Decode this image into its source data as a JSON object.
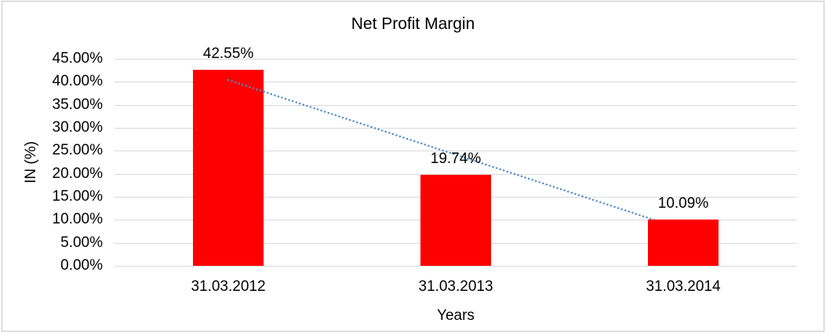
{
  "chart_data": {
    "type": "bar",
    "title": "Net Profit Margin",
    "xlabel": "Years",
    "ylabel": "IN (%)",
    "categories": [
      "31.03.2012",
      "31.03.2013",
      "31.03.2014"
    ],
    "values": [
      42.55,
      19.74,
      10.09
    ],
    "data_labels": [
      "42.55%",
      "19.74%",
      "10.09%"
    ],
    "ylim": [
      0,
      45
    ],
    "ytick_step": 5,
    "ytick_labels": [
      "45.00%",
      "40.00%",
      "35.00%",
      "30.00%",
      "25.00%",
      "20.00%",
      "15.00%",
      "10.00%",
      "5.00%",
      "0.00%"
    ],
    "grid": true,
    "legend": "none",
    "bar_color": "#ff0000",
    "gridline_color": "#d9d9d9",
    "trendline": {
      "type": "linear",
      "style": "dotted",
      "color": "#4e8ac8",
      "start_value": 40.4,
      "end_value": 7.9
    }
  }
}
